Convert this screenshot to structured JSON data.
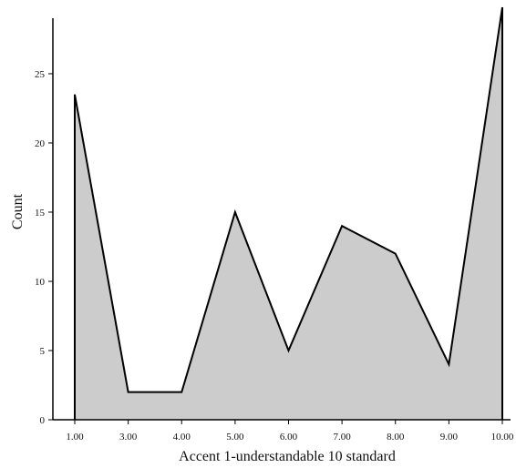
{
  "chart_data": {
    "type": "area",
    "x": [
      "1.00",
      "3.00",
      "4.00",
      "5.00",
      "6.00",
      "7.00",
      "8.00",
      "9.00",
      "10.00"
    ],
    "series": [
      {
        "values": [
          23.5,
          2,
          2,
          15,
          5,
          14,
          12,
          4,
          29.8
        ]
      }
    ],
    "xlabel": "Accent 1-understandable  10 standard",
    "ylabel": "Count",
    "ylim": [
      0,
      29.8
    ],
    "yticks": [
      0,
      5,
      10,
      15,
      20,
      25
    ],
    "grid": false,
    "fill_color": "#cccccc",
    "line_color": "#000000",
    "axis_color": "#000000"
  }
}
